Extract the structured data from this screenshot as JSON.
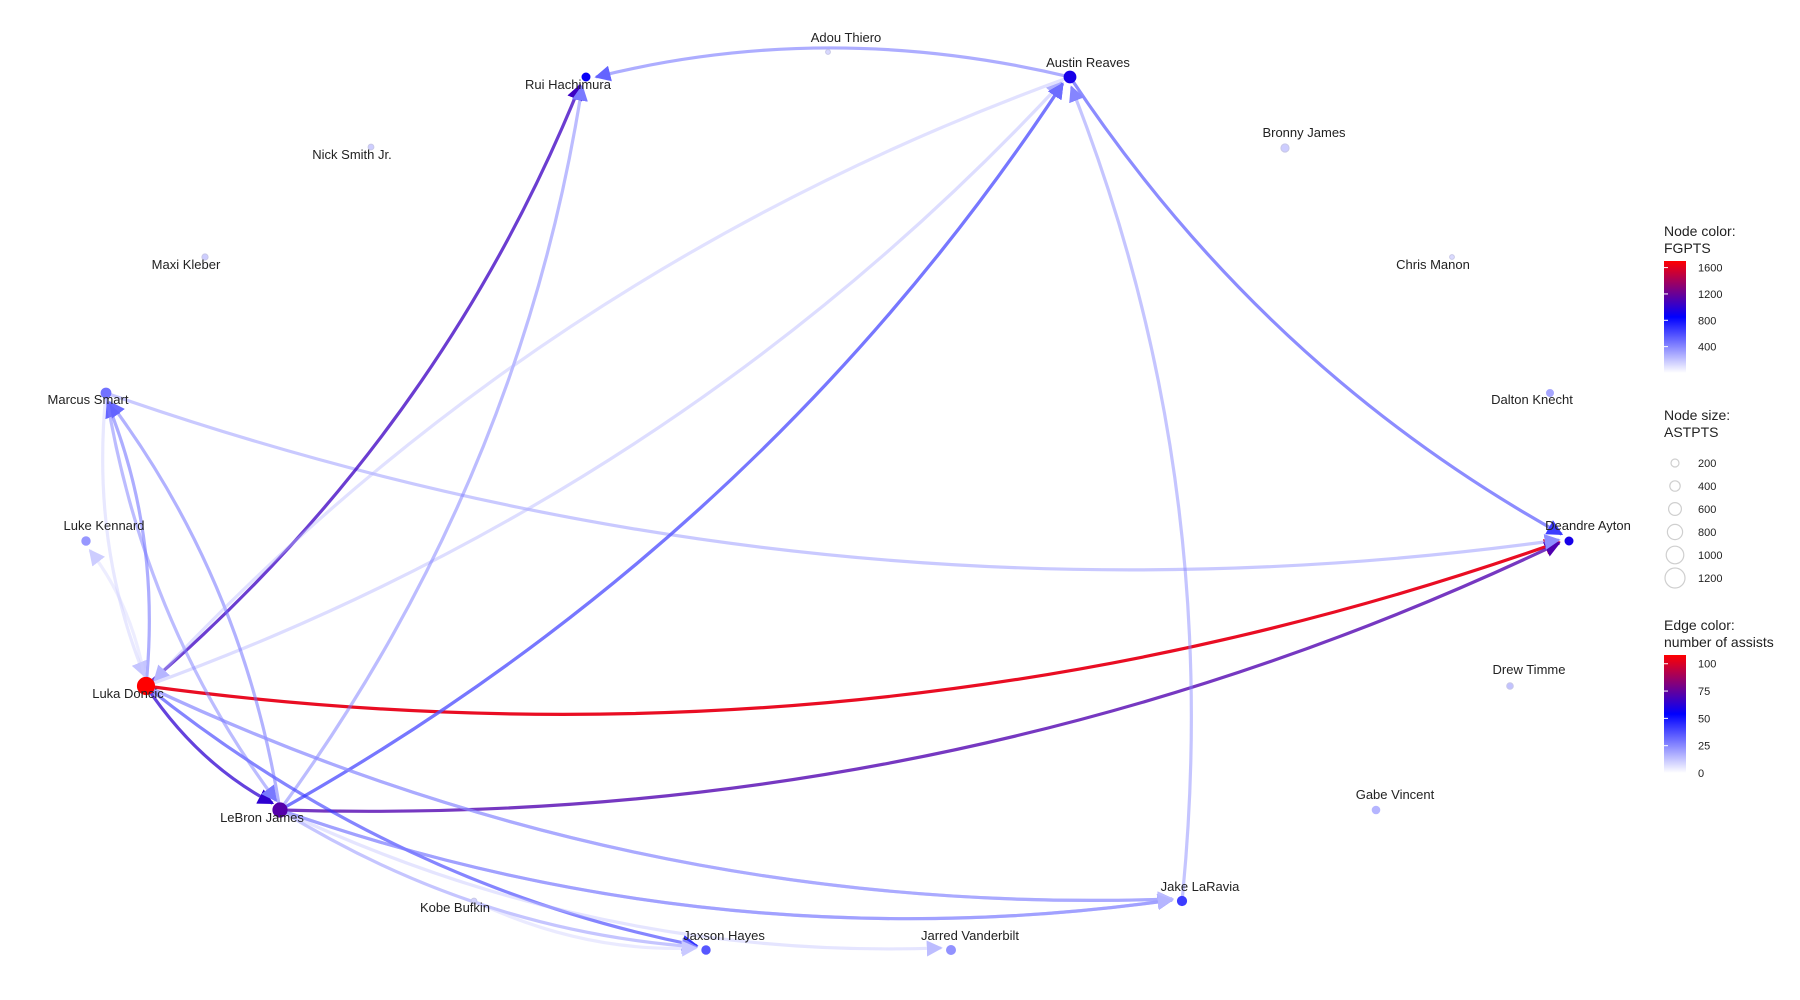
{
  "nodes": [
    {
      "id": "adou",
      "name": "Adou Thiero",
      "fgpts": 20,
      "astpts": 10
    },
    {
      "id": "austin",
      "name": "Austin Reaves",
      "fgpts": 900,
      "astpts": 420
    },
    {
      "id": "rui",
      "name": "Rui Hachimura",
      "fgpts": 850,
      "astpts": 120
    },
    {
      "id": "nick",
      "name": "Nick Smith Jr.",
      "fgpts": 60,
      "astpts": 30
    },
    {
      "id": "bronny",
      "name": "Bronny James",
      "fgpts": 60,
      "astpts": 130
    },
    {
      "id": "maxi",
      "name": "Maxi Kleber",
      "fgpts": 60,
      "astpts": 40
    },
    {
      "id": "chris",
      "name": "Chris Manon",
      "fgpts": 10,
      "astpts": 10
    },
    {
      "id": "marcus",
      "name": "Marcus Smart",
      "fgpts": 400,
      "astpts": 240
    },
    {
      "id": "dalton",
      "name": "Dalton Knecht",
      "fgpts": 200,
      "astpts": 70
    },
    {
      "id": "luke",
      "name": "Luke Kennard",
      "fgpts": 260,
      "astpts": 150
    },
    {
      "id": "deandre",
      "name": "Deandre Ayton",
      "fgpts": 900,
      "astpts": 120
    },
    {
      "id": "drew",
      "name": "Drew Timme",
      "fgpts": 100,
      "astpts": 60
    },
    {
      "id": "luka",
      "name": "Luka Doncic",
      "fgpts": 1650,
      "astpts": 1150
    },
    {
      "id": "gabe",
      "name": "Gabe Vincent",
      "fgpts": 150,
      "astpts": 100
    },
    {
      "id": "lebron",
      "name": "LeBron James",
      "fgpts": 1100,
      "astpts": 700
    },
    {
      "id": "jake",
      "name": "Jake LaRavia",
      "fgpts": 600,
      "astpts": 200
    },
    {
      "id": "kobe",
      "name": "Kobe Bufkin",
      "fgpts": 40,
      "astpts": 30
    },
    {
      "id": "jaxson",
      "name": "Jaxson Hayes",
      "fgpts": 500,
      "astpts": 150
    },
    {
      "id": "jarred",
      "name": "Jarred Vanderbilt",
      "fgpts": 280,
      "astpts": 180
    }
  ],
  "edges": [
    {
      "source": "austin",
      "target": "rui",
      "assists": 30
    },
    {
      "source": "austin",
      "target": "deandre",
      "assists": 40
    },
    {
      "source": "luka",
      "target": "deandre",
      "assists": 105
    },
    {
      "source": "lebron",
      "target": "deandre",
      "assists": 72
    },
    {
      "source": "marcus",
      "target": "deandre",
      "assists": 20
    },
    {
      "source": "luka",
      "target": "rui",
      "assists": 68
    },
    {
      "source": "luka",
      "target": "austin",
      "assists": 12
    },
    {
      "source": "lebron",
      "target": "austin",
      "assists": 42
    },
    {
      "source": "lebron",
      "target": "rui",
      "assists": 25
    },
    {
      "source": "jake",
      "target": "austin",
      "assists": 22
    },
    {
      "source": "lebron",
      "target": "austin",
      "assists": 28
    },
    {
      "source": "luka",
      "target": "lebron",
      "assists": 65
    },
    {
      "source": "luka",
      "target": "jake",
      "assists": 35
    },
    {
      "source": "lebron",
      "target": "jake",
      "assists": 38
    },
    {
      "source": "luka",
      "target": "jaxson",
      "assists": 42
    },
    {
      "source": "lebron",
      "target": "jaxson",
      "assists": 22
    },
    {
      "source": "lebron",
      "target": "marcus",
      "assists": 28
    },
    {
      "source": "luka",
      "target": "marcus",
      "assists": 30
    },
    {
      "source": "marcus",
      "target": "luka",
      "assists": 6
    },
    {
      "source": "luka",
      "target": "luke",
      "assists": 4
    },
    {
      "source": "lebron",
      "target": "jarred",
      "assists": 8
    },
    {
      "source": "luka",
      "target": "jake",
      "assists": 8
    },
    {
      "source": "lebron",
      "target": "jake",
      "assists": 10
    },
    {
      "source": "marcus",
      "target": "lebron",
      "assists": 25
    },
    {
      "source": "austin",
      "target": "luka",
      "assists": 10
    },
    {
      "source": "kobe",
      "target": "jaxson",
      "assists": 5
    }
  ],
  "legend": {
    "color_title": "Node color:",
    "color_var": "FGPTS",
    "color_ticks": [
      "1600",
      "1200",
      "800",
      "400"
    ],
    "size_title": "Node size:",
    "size_var": "ASTPTS",
    "size_ticks": [
      "200",
      "400",
      "600",
      "800",
      "1000",
      "1200"
    ],
    "edge_title": "Edge color:",
    "edge_var": "number of assists",
    "edge_ticks": [
      "100",
      "75",
      "50",
      "25",
      "0"
    ],
    "colors": {
      "low": "#ffffff",
      "mid": "#0000ff",
      "high": "#ff0000"
    }
  }
}
